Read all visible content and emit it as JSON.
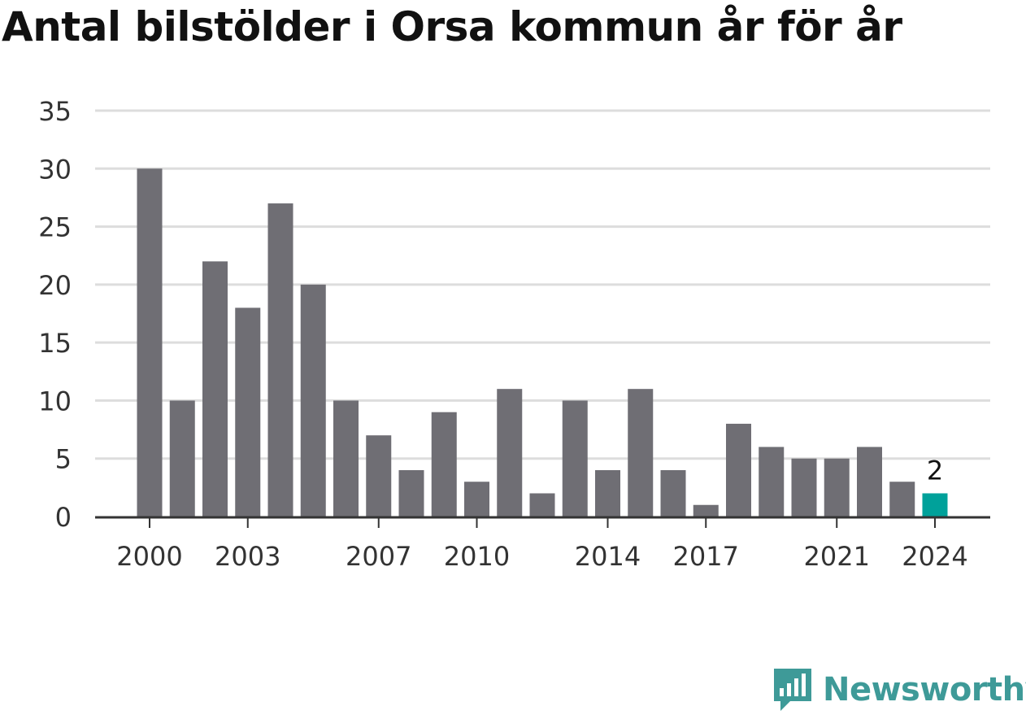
{
  "chart_data": {
    "type": "bar",
    "title": "Antal bilstölder i Orsa kommun år för år",
    "categories": [
      "2000",
      "2001",
      "2002",
      "2003",
      "2004",
      "2005",
      "2006",
      "2007",
      "2008",
      "2009",
      "2010",
      "2011",
      "2012",
      "2013",
      "2014",
      "2015",
      "2016",
      "2017",
      "2018",
      "2019",
      "2020",
      "2021",
      "2022",
      "2023",
      "2024"
    ],
    "values": [
      30,
      10,
      22,
      18,
      27,
      20,
      10,
      7,
      4,
      9,
      3,
      11,
      2,
      10,
      4,
      11,
      4,
      1,
      8,
      6,
      5,
      5,
      6,
      3,
      2
    ],
    "x_tick_labels": [
      "2000",
      "2003",
      "2007",
      "2010",
      "2014",
      "2017",
      "2021",
      "2024"
    ],
    "y_ticks": [
      0,
      5,
      10,
      15,
      20,
      25,
      30,
      35
    ],
    "ylim": [
      0,
      35
    ],
    "grid": true,
    "highlight": {
      "category": "2024",
      "label": "2"
    },
    "colors": {
      "bar": "#6f6e74",
      "highlight": "#00a19a",
      "grid": "#dddddd",
      "axis": "#333333",
      "text": "#333333"
    }
  },
  "brand": {
    "name": "Newsworthy",
    "logo_icon": "chart-speech-bubble-icon",
    "color": "#3e9a98"
  }
}
